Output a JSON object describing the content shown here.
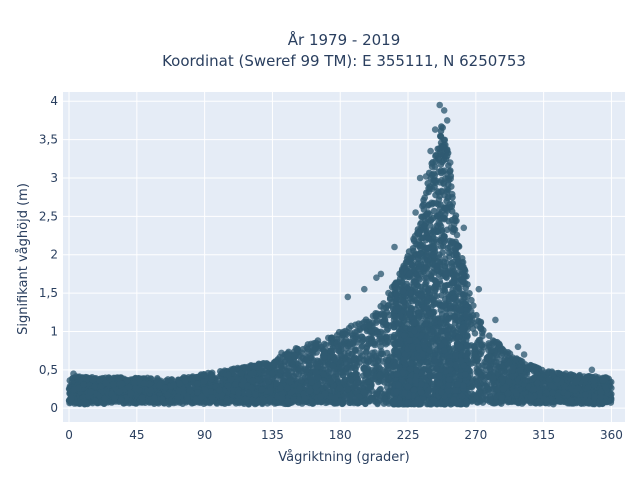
{
  "chart_data": {
    "type": "scatter",
    "title": "År 1979 - 2019",
    "subtitle": "Koordinat (Sweref 99 TM): E 355111, N 6250753",
    "xlabel": "Vågriktning (grader)",
    "ylabel": "Signifikant våghöjd (m)",
    "xlim": [
      -4,
      369
    ],
    "ylim": [
      -0.18,
      4.12
    ],
    "x_ticks": [
      0,
      45,
      90,
      135,
      180,
      225,
      270,
      315,
      360
    ],
    "x_tick_labels": [
      "0",
      "45",
      "90",
      "135",
      "180",
      "225",
      "270",
      "315",
      "360"
    ],
    "y_ticks": [
      0,
      0.5,
      1,
      1.5,
      2,
      2.5,
      3,
      3.5,
      4
    ],
    "y_tick_labels": [
      "0",
      "0,5",
      "1",
      "1,5",
      "2",
      "2,5",
      "3",
      "3,5",
      "4"
    ],
    "grid": true,
    "background": "#e5ecf6",
    "marker_color": "#2f5a72",
    "envelope": {
      "x": [
        0,
        20,
        45,
        70,
        90,
        110,
        135,
        150,
        165,
        180,
        195,
        205,
        215,
        225,
        232,
        238,
        242,
        245,
        248,
        252,
        255,
        260,
        265,
        270,
        280,
        290,
        300,
        315,
        330,
        345,
        360
      ],
      "y_max": [
        0.42,
        0.4,
        0.4,
        0.38,
        0.45,
        0.52,
        0.62,
        0.78,
        0.88,
        1.0,
        1.15,
        1.3,
        1.6,
        2.0,
        2.45,
        2.95,
        3.4,
        3.6,
        3.7,
        3.3,
        2.8,
        2.1,
        1.6,
        1.25,
        0.95,
        0.75,
        0.62,
        0.5,
        0.45,
        0.42,
        0.4
      ]
    },
    "outliers": [
      {
        "x": 246,
        "y": 3.95
      },
      {
        "x": 249,
        "y": 3.88
      },
      {
        "x": 251,
        "y": 3.75
      },
      {
        "x": 243,
        "y": 3.63
      },
      {
        "x": 240,
        "y": 3.35
      },
      {
        "x": 253,
        "y": 3.2
      },
      {
        "x": 237,
        "y": 3.02
      },
      {
        "x": 233,
        "y": 3.0
      },
      {
        "x": 230,
        "y": 2.55
      },
      {
        "x": 262,
        "y": 2.35
      },
      {
        "x": 216,
        "y": 2.1
      },
      {
        "x": 207,
        "y": 1.75
      },
      {
        "x": 204,
        "y": 1.7
      },
      {
        "x": 196,
        "y": 1.55
      },
      {
        "x": 185,
        "y": 1.45
      },
      {
        "x": 272,
        "y": 1.55
      },
      {
        "x": 283,
        "y": 1.15
      },
      {
        "x": 298,
        "y": 0.8
      },
      {
        "x": 302,
        "y": 0.7
      },
      {
        "x": 347,
        "y": 0.5
      },
      {
        "x": 3,
        "y": 0.45
      },
      {
        "x": 123,
        "y": 0.55
      },
      {
        "x": 141,
        "y": 0.72
      }
    ]
  }
}
